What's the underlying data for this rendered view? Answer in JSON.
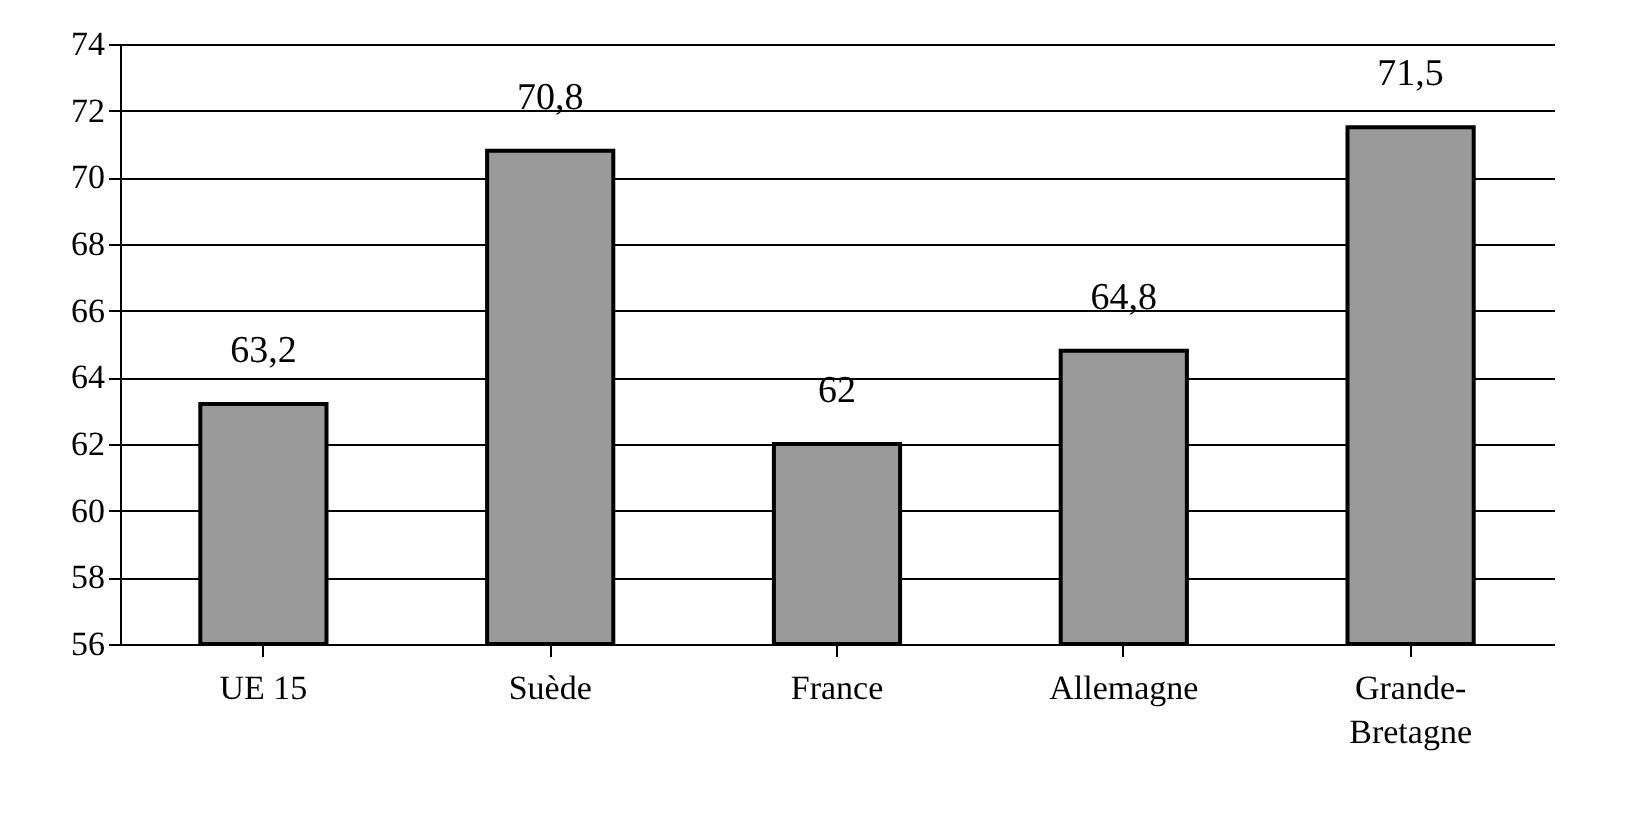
{
  "chart_data": {
    "type": "bar",
    "categories": [
      "UE 15",
      "Suède",
      "France",
      "Allemagne",
      "Grande-Bretagne"
    ],
    "values": [
      63.2,
      70.8,
      62,
      64.8,
      71.5
    ],
    "value_labels": [
      "63,2",
      "70,8",
      "62",
      "64,8",
      "71,5"
    ],
    "color": "#9a9a9a",
    "ylim": [
      56,
      74
    ],
    "yticks": [
      56,
      58,
      60,
      62,
      64,
      66,
      68,
      70,
      72,
      74
    ],
    "grid": "y"
  }
}
